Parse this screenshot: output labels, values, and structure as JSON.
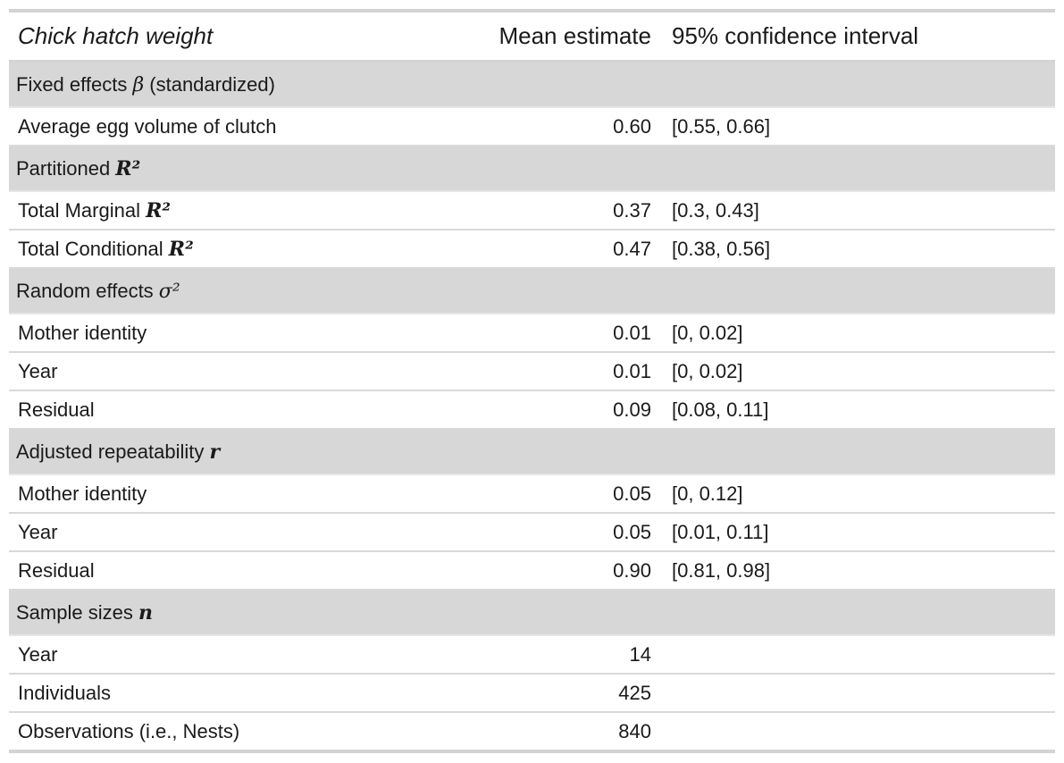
{
  "header": {
    "label": "Chick hatch weight",
    "mean": "Mean estimate",
    "ci": "95% confidence interval"
  },
  "groups": {
    "fixed": {
      "label": "Fixed effects ",
      "symbol": "β",
      "suffix": " (standardized)"
    },
    "partitioned": {
      "label": "Partitioned ",
      "symbol": "R²"
    },
    "random": {
      "label": "Random effects ",
      "symbol": "σ²"
    },
    "repeatability": {
      "label": "Adjusted repeatability ",
      "symbol": "r"
    },
    "sample": {
      "label": "Sample sizes ",
      "symbol": "n"
    }
  },
  "rows": {
    "egg_volume": {
      "label": "Average egg volume of clutch",
      "mean": "0.60",
      "ci": "[0.55, 0.66]"
    },
    "marginal": {
      "label": "Total Marginal ",
      "symbol": "R²",
      "mean": "0.37",
      "ci": "[0.3, 0.43]"
    },
    "conditional": {
      "label": "Total Conditional ",
      "symbol": "R²",
      "mean": "0.47",
      "ci": "[0.38, 0.56]"
    },
    "re_mother": {
      "label": "Mother identity",
      "mean": "0.01",
      "ci": "[0, 0.02]"
    },
    "re_year": {
      "label": "Year",
      "mean": "0.01",
      "ci": "[0, 0.02]"
    },
    "re_residual": {
      "label": "Residual",
      "mean": "0.09",
      "ci": "[0.08, 0.11]"
    },
    "rep_mother": {
      "label": "Mother identity",
      "mean": "0.05",
      "ci": "[0, 0.12]"
    },
    "rep_year": {
      "label": "Year",
      "mean": "0.05",
      "ci": "[0.01, 0.11]"
    },
    "rep_residual": {
      "label": "Residual",
      "mean": "0.90",
      "ci": "[0.81, 0.98]"
    },
    "n_year": {
      "label": "Year",
      "mean": "14",
      "ci": ""
    },
    "n_individuals": {
      "label": "Individuals",
      "mean": "425",
      "ci": ""
    },
    "n_observations": {
      "label": "Observations (i.e., Nests)",
      "mean": "840",
      "ci": ""
    }
  }
}
